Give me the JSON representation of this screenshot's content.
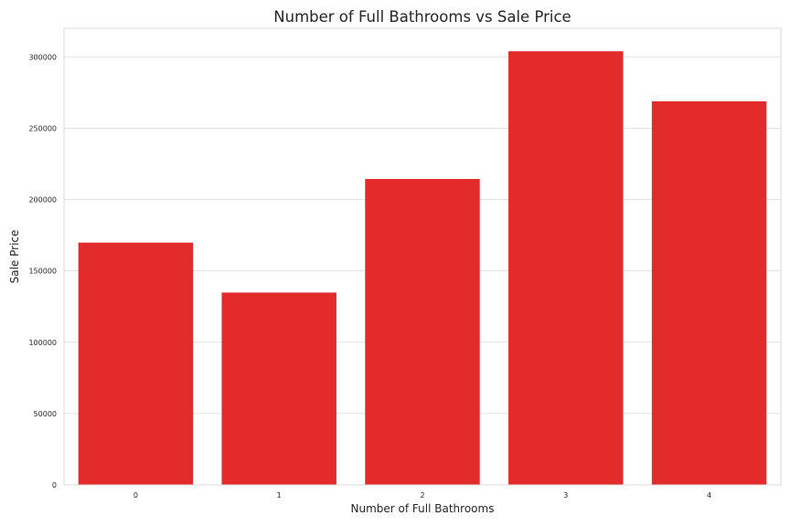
{
  "chart_data": {
    "type": "bar",
    "title": "Number of Full Bathrooms vs Sale Price",
    "xlabel": "Number of Full Bathrooms",
    "ylabel": "Sale Price",
    "categories": [
      "0",
      "1",
      "2",
      "3",
      "4"
    ],
    "values": [
      169800,
      134800,
      214400,
      303900,
      268800
    ],
    "ylim": [
      0,
      320000
    ],
    "yticks": [
      0,
      50000,
      100000,
      150000,
      200000,
      250000,
      300000
    ],
    "ytick_labels": [
      "0",
      "50000",
      "100000",
      "150000",
      "200000",
      "250000",
      "300000"
    ],
    "grid": "y",
    "bar_color": "#e32b2b"
  }
}
